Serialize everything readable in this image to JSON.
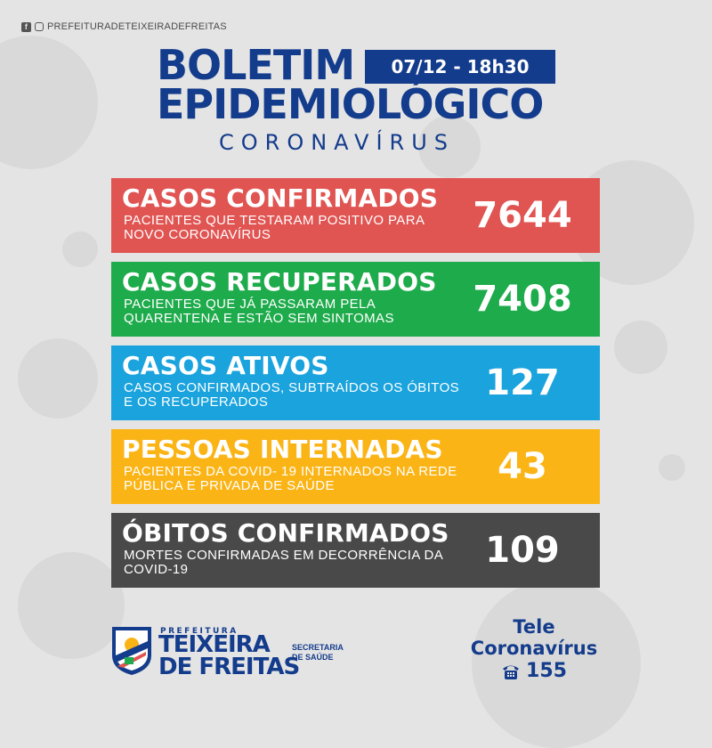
{
  "header": {
    "social_handle": "PREFEITURADETEIXEIRADEFREITAS",
    "title_line1": "BOLETIM",
    "title_line2": "EPIDEMIOLÓGICO",
    "subtitle": "CORONAVÍRUS",
    "date_time": "07/12 - 18h30"
  },
  "cards": [
    {
      "title": "CASOS CONFIRMADOS",
      "description": "PACIENTES QUE TESTARAM POSITIVO PARA NOVO CORONAVÍRUS",
      "value": "7644",
      "color": "#e05452"
    },
    {
      "title": "CASOS RECUPERADOS",
      "description": "PACIENTES QUE JÁ PASSARAM PELA QUARENTENA E ESTÃO SEM SINTOMAS",
      "value": "7408",
      "color": "#1eab4b"
    },
    {
      "title": "CASOS ATIVOS",
      "description": "CASOS CONFIRMADOS, SUBTRAÍDOS OS ÓBITOS E OS RECUPERADOS",
      "value": "127",
      "color": "#1aa3dd"
    },
    {
      "title": "PESSOAS INTERNADAS",
      "description": "PACIENTES DA COVID- 19 INTERNADOS NA REDE PÚBLICA E PRIVADA DE SAÚDE",
      "value": "43",
      "color": "#fbb416"
    },
    {
      "title": "ÓBITOS CONFIRMADOS",
      "description": "MORTES CONFIRMADAS EM DECORRÊNCIA DA COVID-19",
      "value": "109",
      "color": "#494949"
    }
  ],
  "footer": {
    "prefeitura_label": "PREFEITURA",
    "city_line1": "TEIXEIRA",
    "city_line2": "DE FREITAS",
    "secretaria_line1": "SECRETARIA",
    "secretaria_line2": "DE SAÚDE",
    "tele_line1": "Tele",
    "tele_line2": "Coronavírus",
    "tele_number": "155"
  },
  "icons": {
    "facebook": "facebook-icon",
    "instagram": "instagram-icon",
    "phone": "phone-icon"
  }
}
